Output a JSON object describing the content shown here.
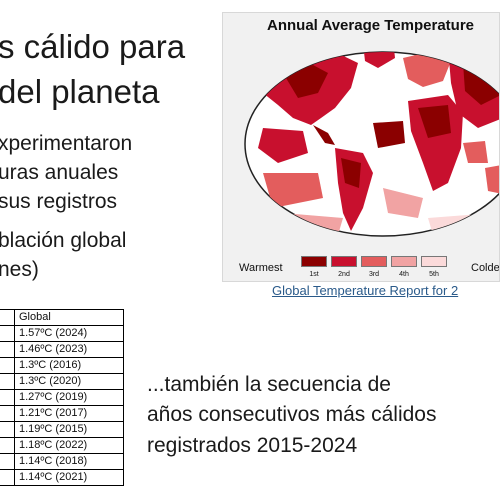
{
  "slide": {
    "title_lines": [
      "s cálido para",
      "del planeta"
    ],
    "bullet1_lines": [
      "xperimentaron",
      "uras anuales",
      "sus registros"
    ],
    "bullet2_lines": [
      "blación global",
      "nes)"
    ],
    "sequence_lines": [
      "...también la secuencia de",
      "años consecutivos más cálidos",
      "registrados 2015-2024"
    ]
  },
  "map_figure": {
    "title": "Annual Average Temperature",
    "legend_warmest": "Warmest",
    "legend_coldest": "Colde",
    "ranks": [
      "1st",
      "2nd",
      "3rd",
      "4th",
      "5th"
    ],
    "rank_colors": [
      "#8b0000",
      "#c8102e",
      "#e35d5d",
      "#f1a3a3",
      "#fbdada"
    ],
    "ocean_color": "#ffffff",
    "link_text": "Global Temperature Report for 2"
  },
  "table": {
    "header": "Global",
    "rows": [
      "1.57ºC (2024)",
      "1.46ºC (2023)",
      "1.3ºC (2016)",
      "1.3ºC (2020)",
      "1.27ºC (2019)",
      "1.21ºC (2017)",
      "1.19ºC (2015)",
      "1.18ºC (2022)",
      "1.14ºC (2018)",
      "1.14ºC (2021)"
    ]
  }
}
